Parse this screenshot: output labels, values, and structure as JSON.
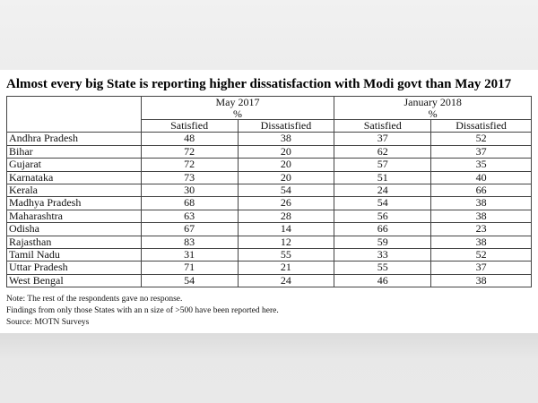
{
  "chart_data": {
    "type": "table",
    "title": "Almost every big State is reporting higher dissatisfaction with Modi govt than May 2017",
    "periods": [
      {
        "name": "May 2017",
        "unit": "%"
      },
      {
        "name": "January 2018",
        "unit": "%"
      }
    ],
    "columns": [
      "Satisfied",
      "Dissatisfied",
      "Satisfied",
      "Dissatisfied"
    ],
    "rows": [
      {
        "state": "Andhra Pradesh",
        "values": [
          "48",
          "38",
          "37",
          "52"
        ]
      },
      {
        "state": "Bihar",
        "values": [
          "72",
          "20",
          "62",
          "37"
        ]
      },
      {
        "state": "Gujarat",
        "values": [
          "72",
          "20",
          "57",
          "35"
        ]
      },
      {
        "state": "Karnataka",
        "values": [
          "73",
          "20",
          "51",
          "40"
        ]
      },
      {
        "state": "Kerala",
        "values": [
          "30",
          "54",
          "24",
          "66"
        ]
      },
      {
        "state": "Madhya Pradesh",
        "values": [
          "68",
          "26",
          "54",
          "38"
        ]
      },
      {
        "state": "Maharashtra",
        "values": [
          "63",
          "28",
          "56",
          "38"
        ]
      },
      {
        "state": "Odisha",
        "values": [
          "67",
          "14",
          "66",
          "23"
        ]
      },
      {
        "state": "Rajasthan",
        "values": [
          "83",
          "12",
          "59",
          "38"
        ]
      },
      {
        "state": "Tamil Nadu",
        "values": [
          "31",
          "55",
          "33",
          "52"
        ]
      },
      {
        "state": "Uttar Pradesh",
        "values": [
          "71",
          "21",
          "55",
          "37"
        ]
      },
      {
        "state": "West Bengal",
        "values": [
          "54",
          "24",
          "46",
          "38"
        ]
      }
    ],
    "notes": [
      "Note: The rest of the respondents gave no response.",
      "Findings from only those States with an n size of >500 have been reported here.",
      "Source: MOTN Surveys"
    ]
  }
}
